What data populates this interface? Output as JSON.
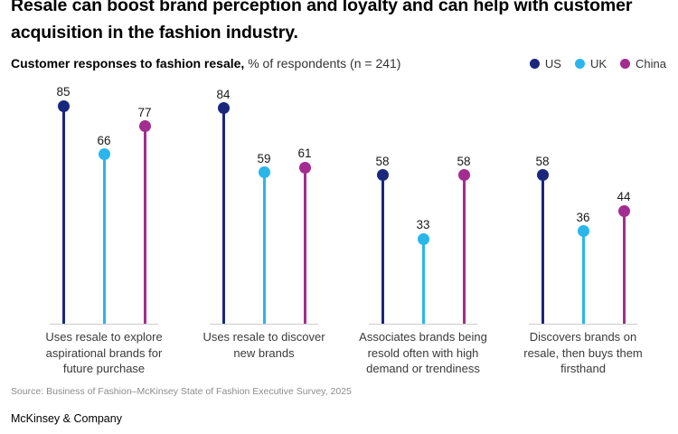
{
  "header": {
    "title_line1": "Resale can boost brand perception and loyalty and can help with customer",
    "title_line2": "acquisition in the fashion industry.",
    "subtitle_bold": "Customer responses to fashion resale,",
    "subtitle_rest": " % of respondents (n = 241)"
  },
  "chart_data": {
    "type": "lollipop",
    "title": "Customer responses to fashion resale",
    "ylabel": "% of respondents",
    "sample_size": "n = 241",
    "ylim": [
      0,
      100
    ],
    "grid": false,
    "legend_position": "top-right",
    "categories": [
      "Uses resale to explore aspirational brands for future purchase",
      "Uses resale to discover new brands",
      "Associates brands being resold often with high demand or trendiness",
      "Discovers brands on resale, then buys them firsthand"
    ],
    "series": [
      {
        "name": "US",
        "color": "#19287D",
        "values": [
          85,
          84,
          58,
          58
        ]
      },
      {
        "name": "UK",
        "color": "#2AB6EB",
        "values": [
          66,
          59,
          33,
          36
        ]
      },
      {
        "name": "China",
        "color": "#A32C90",
        "values": [
          77,
          61,
          58,
          44
        ]
      }
    ]
  },
  "footer": {
    "source": "Source: Business of Fashion–McKinsey State of Fashion Executive Survey, 2025",
    "brand": "McKinsey & Company"
  }
}
